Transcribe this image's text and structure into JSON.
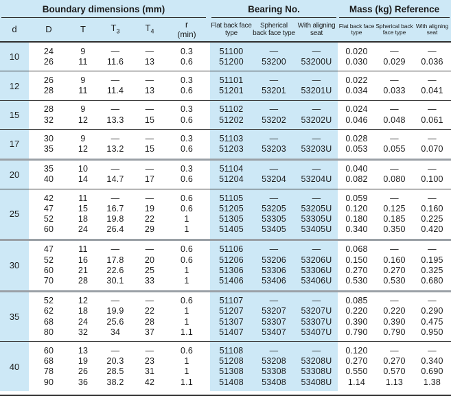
{
  "colors": {
    "section_blue": "#cde8f6",
    "line_dark": "#2e2e2e",
    "line_thick": "#9aa0a6"
  },
  "header": {
    "groups": [
      {
        "label": "Boundary dimensions (mm)"
      },
      {
        "label": "Bearing No."
      },
      {
        "label": "Mass (kg) Reference"
      }
    ],
    "boundary_cols": {
      "d": "d",
      "D": "D",
      "T": "T",
      "T3_base": "T",
      "T3_sub": "3",
      "T4_base": "T",
      "T4_sub": "4",
      "r": "r",
      "r_min": "(min)"
    },
    "type_cols": [
      "Flat back face type",
      "Spherical back face type",
      "With aligning seat"
    ]
  },
  "rows": [
    {
      "d": "10",
      "sep": "thin",
      "lines": [
        {
          "D": "24",
          "T": "9",
          "T3": "—",
          "T4": "—",
          "r": "0.3",
          "b_flat": "51100",
          "b_sph": "—",
          "b_align": "—",
          "m_flat": "0.020",
          "m_sph": "—",
          "m_align": "—"
        },
        {
          "D": "26",
          "T": "11",
          "T3": "11.6",
          "T4": "13",
          "r": "0.6",
          "b_flat": "51200",
          "b_sph": "53200",
          "b_align": "53200U",
          "m_flat": "0.030",
          "m_sph": "0.029",
          "m_align": "0.036"
        }
      ]
    },
    {
      "d": "12",
      "sep": "thin",
      "lines": [
        {
          "D": "26",
          "T": "9",
          "T3": "—",
          "T4": "—",
          "r": "0.3",
          "b_flat": "51101",
          "b_sph": "—",
          "b_align": "—",
          "m_flat": "0.022",
          "m_sph": "—",
          "m_align": "—"
        },
        {
          "D": "28",
          "T": "11",
          "T3": "11.4",
          "T4": "13",
          "r": "0.6",
          "b_flat": "51201",
          "b_sph": "53201",
          "b_align": "53201U",
          "m_flat": "0.034",
          "m_sph": "0.033",
          "m_align": "0.041"
        }
      ]
    },
    {
      "d": "15",
      "sep": "thin",
      "lines": [
        {
          "D": "28",
          "T": "9",
          "T3": "—",
          "T4": "—",
          "r": "0.3",
          "b_flat": "51102",
          "b_sph": "—",
          "b_align": "—",
          "m_flat": "0.024",
          "m_sph": "—",
          "m_align": "—"
        },
        {
          "D": "32",
          "T": "12",
          "T3": "13.3",
          "T4": "15",
          "r": "0.6",
          "b_flat": "51202",
          "b_sph": "53202",
          "b_align": "53202U",
          "m_flat": "0.046",
          "m_sph": "0.048",
          "m_align": "0.061"
        }
      ]
    },
    {
      "d": "17",
      "sep": "thin",
      "lines": [
        {
          "D": "30",
          "T": "9",
          "T3": "—",
          "T4": "—",
          "r": "0.3",
          "b_flat": "51103",
          "b_sph": "—",
          "b_align": "—",
          "m_flat": "0.028",
          "m_sph": "—",
          "m_align": "—"
        },
        {
          "D": "35",
          "T": "12",
          "T3": "13.2",
          "T4": "15",
          "r": "0.6",
          "b_flat": "51203",
          "b_sph": "53203",
          "b_align": "53203U",
          "m_flat": "0.053",
          "m_sph": "0.055",
          "m_align": "0.070"
        }
      ]
    },
    {
      "d": "20",
      "sep": "thick",
      "lines": [
        {
          "D": "35",
          "T": "10",
          "T3": "—",
          "T4": "—",
          "r": "0.3",
          "b_flat": "51104",
          "b_sph": "—",
          "b_align": "—",
          "m_flat": "0.040",
          "m_sph": "—",
          "m_align": "—"
        },
        {
          "D": "40",
          "T": "14",
          "T3": "14.7",
          "T4": "17",
          "r": "0.6",
          "b_flat": "51204",
          "b_sph": "53204",
          "b_align": "53204U",
          "m_flat": "0.082",
          "m_sph": "0.080",
          "m_align": "0.100"
        }
      ]
    },
    {
      "d": "25",
      "sep": "thin",
      "lines": [
        {
          "D": "42",
          "T": "11",
          "T3": "—",
          "T4": "—",
          "r": "0.6",
          "b_flat": "51105",
          "b_sph": "—",
          "b_align": "—",
          "m_flat": "0.059",
          "m_sph": "—",
          "m_align": "—"
        },
        {
          "D": "47",
          "T": "15",
          "T3": "16.7",
          "T4": "19",
          "r": "0.6",
          "b_flat": "51205",
          "b_sph": "53205",
          "b_align": "53205U",
          "m_flat": "0.120",
          "m_sph": "0.125",
          "m_align": "0.160"
        },
        {
          "D": "52",
          "T": "18",
          "T3": "19.8",
          "T4": "22",
          "r": "1",
          "b_flat": "51305",
          "b_sph": "53305",
          "b_align": "53305U",
          "m_flat": "0.180",
          "m_sph": "0.185",
          "m_align": "0.225"
        },
        {
          "D": "60",
          "T": "24",
          "T3": "26.4",
          "T4": "29",
          "r": "1",
          "b_flat": "51405",
          "b_sph": "53405",
          "b_align": "53405U",
          "m_flat": "0.340",
          "m_sph": "0.350",
          "m_align": "0.420"
        }
      ]
    },
    {
      "d": "30",
      "sep": "thick",
      "lines": [
        {
          "D": "47",
          "T": "11",
          "T3": "—",
          "T4": "—",
          "r": "0.6",
          "b_flat": "51106",
          "b_sph": "—",
          "b_align": "—",
          "m_flat": "0.068",
          "m_sph": "—",
          "m_align": "—"
        },
        {
          "D": "52",
          "T": "16",
          "T3": "17.8",
          "T4": "20",
          "r": "0.6",
          "b_flat": "51206",
          "b_sph": "53206",
          "b_align": "53206U",
          "m_flat": "0.150",
          "m_sph": "0.160",
          "m_align": "0.195"
        },
        {
          "D": "60",
          "T": "21",
          "T3": "22.6",
          "T4": "25",
          "r": "1",
          "b_flat": "51306",
          "b_sph": "53306",
          "b_align": "53306U",
          "m_flat": "0.270",
          "m_sph": "0.270",
          "m_align": "0.325"
        },
        {
          "D": "70",
          "T": "28",
          "T3": "30.1",
          "T4": "33",
          "r": "1",
          "b_flat": "51406",
          "b_sph": "53406",
          "b_align": "53406U",
          "m_flat": "0.530",
          "m_sph": "0.530",
          "m_align": "0.680"
        }
      ]
    },
    {
      "d": "35",
      "sep": "thick",
      "lines": [
        {
          "D": "52",
          "T": "12",
          "T3": "—",
          "T4": "—",
          "r": "0.6",
          "b_flat": "51107",
          "b_sph": "—",
          "b_align": "—",
          "m_flat": "0.085",
          "m_sph": "—",
          "m_align": "—"
        },
        {
          "D": "62",
          "T": "18",
          "T3": "19.9",
          "T4": "22",
          "r": "1",
          "b_flat": "51207",
          "b_sph": "53207",
          "b_align": "53207U",
          "m_flat": "0.220",
          "m_sph": "0.220",
          "m_align": "0.290"
        },
        {
          "D": "68",
          "T": "24",
          "T3": "25.6",
          "T4": "28",
          "r": "1",
          "b_flat": "51307",
          "b_sph": "53307",
          "b_align": "53307U",
          "m_flat": "0.390",
          "m_sph": "0.390",
          "m_align": "0.475"
        },
        {
          "D": "80",
          "T": "32",
          "T3": "34",
          "T4": "37",
          "r": "1.1",
          "b_flat": "51407",
          "b_sph": "53407",
          "b_align": "53407U",
          "m_flat": "0.790",
          "m_sph": "0.790",
          "m_align": "0.950"
        }
      ]
    },
    {
      "d": "40",
      "sep": "thin",
      "lines": [
        {
          "D": "60",
          "T": "13",
          "T3": "—",
          "T4": "—",
          "r": "0.6",
          "b_flat": "51108",
          "b_sph": "—",
          "b_align": "—",
          "m_flat": "0.120",
          "m_sph": "—",
          "m_align": "—"
        },
        {
          "D": "68",
          "T": "19",
          "T3": "20.3",
          "T4": "23",
          "r": "1",
          "b_flat": "51208",
          "b_sph": "53208",
          "b_align": "53208U",
          "m_flat": "0.270",
          "m_sph": "0.270",
          "m_align": "0.340"
        },
        {
          "D": "78",
          "T": "26",
          "T3": "28.5",
          "T4": "31",
          "r": "1",
          "b_flat": "51308",
          "b_sph": "53308",
          "b_align": "53308U",
          "m_flat": "0.550",
          "m_sph": "0.570",
          "m_align": "0.690"
        },
        {
          "D": "90",
          "T": "36",
          "T3": "38.2",
          "T4": "42",
          "r": "1.1",
          "b_flat": "51408",
          "b_sph": "53408",
          "b_align": "53408U",
          "m_flat": "1.14",
          "m_sph": "1.13",
          "m_align": "1.38"
        }
      ]
    }
  ]
}
